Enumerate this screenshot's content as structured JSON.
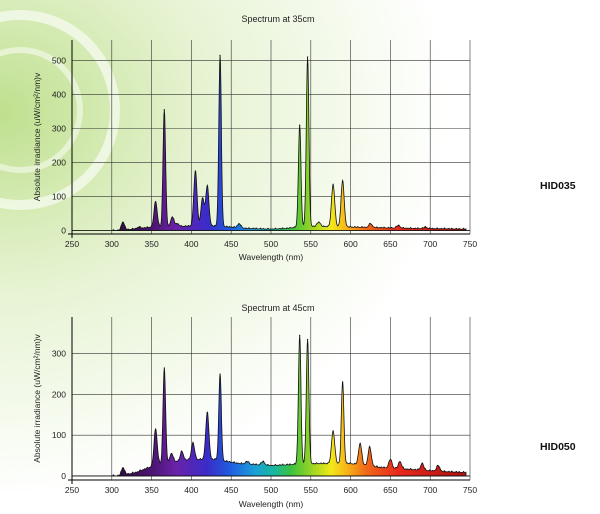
{
  "colors": {
    "background_glow": "#cfe6a8",
    "grid": "#333333",
    "outline": "#111111"
  },
  "panels": [
    {
      "title": "Spectrum at 35cm",
      "label": "HID035"
    },
    {
      "title": "Spectrum at 45cm",
      "label": "HID050"
    }
  ],
  "chart_data": [
    {
      "type": "area",
      "title": "Spectrum at 35cm",
      "xlabel": "Wavelength (nm)",
      "ylabel": "Absolute irradiance (uW/cm²/nm)v",
      "xlim": [
        250,
        750
      ],
      "ylim": [
        -10,
        560
      ],
      "xticks": [
        250,
        300,
        350,
        400,
        450,
        500,
        550,
        600,
        650,
        700,
        750
      ],
      "yticks": [
        0,
        100,
        200,
        300,
        400,
        500
      ],
      "grid": true,
      "fill": "visible-spectrum gradient",
      "series": [
        {
          "baseline": [
            [
              250,
              0
            ],
            [
              310,
              0
            ],
            [
              330,
              5
            ],
            [
              350,
              10
            ],
            [
              380,
              12
            ],
            [
              420,
              14
            ],
            [
              450,
              10
            ],
            [
              470,
              6
            ],
            [
              500,
              4
            ],
            [
              520,
              6
            ],
            [
              540,
              12
            ],
            [
              560,
              12
            ],
            [
              600,
              10
            ],
            [
              640,
              8
            ],
            [
              680,
              6
            ],
            [
              720,
              5
            ],
            [
              745,
              4
            ]
          ],
          "peaks": [
            [
              314,
              25
            ],
            [
              334,
              10
            ],
            [
              355,
              85
            ],
            [
              366,
              355
            ],
            [
              376,
              40
            ],
            [
              382,
              20
            ],
            [
              405,
              175
            ],
            [
              414,
              95
            ],
            [
              420,
              130
            ],
            [
              436,
              515
            ],
            [
              460,
              20
            ],
            [
              536,
              310
            ],
            [
              546,
              510
            ],
            [
              560,
              25
            ],
            [
              578,
              135
            ],
            [
              590,
              145
            ],
            [
              625,
              20
            ],
            [
              660,
              15
            ],
            [
              694,
              10
            ]
          ]
        }
      ]
    },
    {
      "type": "area",
      "title": "Spectrum at 45cm",
      "xlabel": "Wavelength (nm)",
      "ylabel": "Absolute irradiance (uW/cm²/nm)v",
      "xlim": [
        250,
        750
      ],
      "ylim": [
        -10,
        390
      ],
      "xticks": [
        250,
        300,
        350,
        400,
        450,
        500,
        550,
        600,
        650,
        700,
        750
      ],
      "yticks": [
        0,
        100,
        200,
        300
      ],
      "grid": true,
      "fill": "visible-spectrum gradient",
      "series": [
        {
          "baseline": [
            [
              250,
              0
            ],
            [
              310,
              0
            ],
            [
              330,
              8
            ],
            [
              360,
              30
            ],
            [
              400,
              40
            ],
            [
              430,
              40
            ],
            [
              460,
              30
            ],
            [
              500,
              25
            ],
            [
              530,
              28
            ],
            [
              560,
              30
            ],
            [
              600,
              30
            ],
            [
              640,
              20
            ],
            [
              680,
              15
            ],
            [
              720,
              10
            ],
            [
              745,
              8
            ]
          ],
          "peaks": [
            [
              314,
              20
            ],
            [
              355,
              115
            ],
            [
              366,
              265
            ],
            [
              375,
              55
            ],
            [
              388,
              60
            ],
            [
              402,
              80
            ],
            [
              420,
              155
            ],
            [
              436,
              250
            ],
            [
              470,
              35
            ],
            [
              490,
              35
            ],
            [
              536,
              345
            ],
            [
              546,
              335
            ],
            [
              578,
              110
            ],
            [
              590,
              230
            ],
            [
              612,
              80
            ],
            [
              624,
              70
            ],
            [
              650,
              40
            ],
            [
              662,
              35
            ],
            [
              690,
              30
            ],
            [
              710,
              25
            ]
          ]
        }
      ]
    }
  ]
}
